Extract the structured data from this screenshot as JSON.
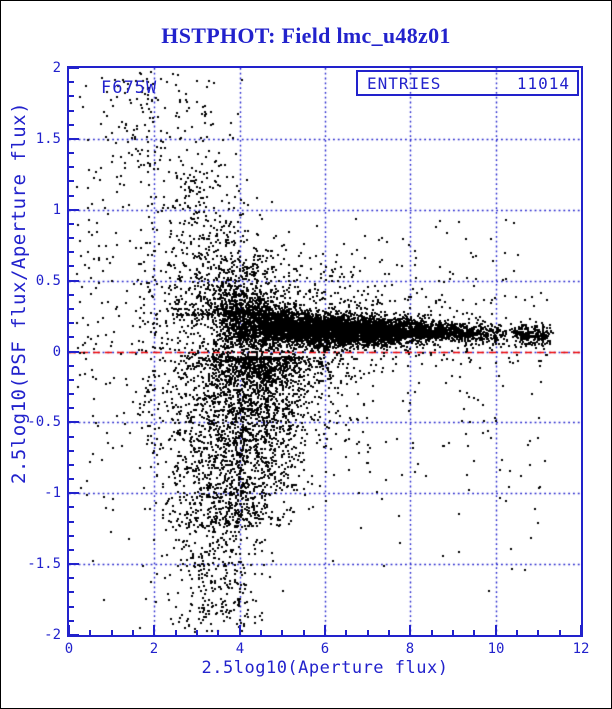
{
  "page": {
    "title": "HSTPHOT: Field lmc_u48z01"
  },
  "colors": {
    "accent": "#2222cc",
    "zero_line": "#ee0000",
    "points": "#000000",
    "background": "#ffffff",
    "outer_border": "#000000"
  },
  "chart_data": {
    "type": "scatter",
    "title": "HSTPHOT: Field lmc_u48z01",
    "xlabel": "2.5log10(Aperture flux)",
    "ylabel": "2.5log10(PSF flux/Aperture flux)",
    "xlim": [
      0,
      12
    ],
    "ylim": [
      -2,
      2
    ],
    "xticks": [
      {
        "v": 0,
        "label": "0"
      },
      {
        "v": 2,
        "label": "2"
      },
      {
        "v": 4,
        "label": "4"
      },
      {
        "v": 6,
        "label": "6"
      },
      {
        "v": 8,
        "label": "8"
      },
      {
        "v": 10,
        "label": "10"
      },
      {
        "v": 12,
        "label": "12"
      }
    ],
    "yticks": [
      {
        "v": 2,
        "label": "2"
      },
      {
        "v": 1.5,
        "label": "1.5"
      },
      {
        "v": 1,
        "label": "1"
      },
      {
        "v": 0.5,
        "label": "0.5"
      },
      {
        "v": 0,
        "label": "0"
      },
      {
        "v": -0.5,
        "label": "-0.5"
      },
      {
        "v": -1,
        "label": "-1"
      },
      {
        "v": -1.5,
        "label": "-1.5"
      },
      {
        "v": -2,
        "label": "-2"
      }
    ],
    "x_minor_step": 0.5,
    "y_minor_step": 0.1,
    "grid": {
      "x_values": [
        2,
        4,
        6,
        8,
        10
      ],
      "y_values": [
        -1.5,
        -1,
        -0.5,
        0,
        0.5,
        1,
        1.5
      ],
      "style": "dotted"
    },
    "zero_line": {
      "y": 0,
      "style": "dashed"
    },
    "annotations": {
      "filter_label": "F675W",
      "stats": {
        "label": "ENTRIES",
        "value": "11014"
      }
    },
    "n_points": 11014,
    "seed": 42,
    "band": {
      "center_x": [
        3.4,
        4,
        5,
        6,
        8,
        10,
        11.35
      ],
      "center_y": [
        0.225,
        0.195,
        0.17,
        0.15,
        0.14,
        0.122,
        0.112
      ],
      "sigma_x": [
        3.4,
        4,
        4.5,
        5,
        6,
        7,
        8,
        9,
        10,
        11.35
      ],
      "sigma_y": [
        0.15,
        0.115,
        0.085,
        0.065,
        0.052,
        0.047,
        0.042,
        0.038,
        0.038,
        0.042
      ],
      "halo_fraction": 0.08,
      "halo_scale": 3
    },
    "clusters": [
      {
        "name": "band-core",
        "n": 5800,
        "x": {
          "kind": "pw",
          "xs": [
            3.4,
            4.0,
            4.5,
            5.0,
            6.0,
            7.0,
            7.6,
            8.0,
            8.6,
            9.2,
            10.0,
            10.35,
            10.55,
            11.0,
            11.35
          ],
          "ws": [
            0.05,
            0.55,
            0.95,
            1.0,
            1.0,
            0.95,
            0.85,
            0.62,
            0.45,
            0.28,
            0.13,
            0.05,
            0.11,
            0.09,
            0.02
          ]
        },
        "y": {
          "kind": "band"
        }
      },
      {
        "name": "band-halo",
        "n": 880,
        "x": {
          "kind": "pw",
          "xs": [
            3.25,
            3.7,
            4.2,
            5.0,
            6.0,
            7.5
          ],
          "ws": [
            0.25,
            1.0,
            0.95,
            0.6,
            0.3,
            0.05
          ]
        },
        "y": {
          "kind": "bandnorm",
          "sd": 0.28
        }
      },
      {
        "name": "plume-down",
        "n": 2190,
        "x": {
          "kind": "norm",
          "mu": 4.55,
          "sd": 0.72,
          "min": 2.2,
          "max": 7.3
        },
        "y": {
          "kind": "pow",
          "a": 0.04,
          "b": 1.2,
          "p": 1.6,
          "sign": -1,
          "min": -1.98,
          "max": -0.02
        },
        "tilt": {
          "slope": 0.5,
          "ref": 0
        }
      },
      {
        "name": "plume-deep",
        "n": 300,
        "x": {
          "kind": "norm",
          "mu": 3.55,
          "sd": 0.55,
          "min": 2.2,
          "max": 5.2
        },
        "y": {
          "kind": "uni",
          "min": -1.98,
          "max": -1.2
        }
      },
      {
        "name": "upper-fan",
        "n": 500,
        "x": {
          "kind": "norm",
          "mu": 3.6,
          "sd": 0.62,
          "min": 1.85,
          "max": 6.6
        },
        "y": {
          "kind": "pow",
          "a": 0.26,
          "b": 1.7,
          "p": 2.6,
          "sign": 1,
          "min": 0.26,
          "max": 1.97
        },
        "tilt": {
          "slope": -0.58,
          "ref": 0.26
        }
      },
      {
        "name": "left-cloud",
        "n": 700,
        "x": {
          "kind": "norm",
          "mu": 2.95,
          "sd": 0.55,
          "min": 1.65,
          "max": 4.3
        },
        "y": {
          "kind": "norm",
          "mu": -0.15,
          "sd": 0.78,
          "min": -1.98,
          "max": 1.3
        }
      },
      {
        "name": "far-left-sparse",
        "n": 230,
        "x": {
          "kind": "uni",
          "min": 0.18,
          "max": 2.1
        },
        "y": {
          "kind": "norm",
          "mu": 0.35,
          "sd": 0.95,
          "min": -1.97,
          "max": 1.97
        }
      },
      {
        "name": "top-left-clump",
        "n": 60,
        "x": {
          "kind": "norm",
          "mu": 1.5,
          "sd": 0.45,
          "min": 0.75,
          "max": 2.7
        },
        "y": {
          "kind": "uni",
          "min": 1.28,
          "max": 1.97
        }
      },
      {
        "name": "right-scatter",
        "n": 200,
        "x": {
          "kind": "uni",
          "min": 5.8,
          "max": 11.2
        },
        "y": {
          "kind": "norm",
          "mu": -0.3,
          "sd": 0.6,
          "min": -1.72,
          "max": 0.7
        }
      },
      {
        "name": "above-band-sparse",
        "n": 60,
        "x": {
          "kind": "uni",
          "min": 5.5,
          "max": 10.5
        },
        "y": {
          "kind": "uni",
          "min": 0.25,
          "max": 0.95
        }
      },
      {
        "name": "right-end-clump",
        "n": 94,
        "x": {
          "kind": "uni",
          "min": 10.45,
          "max": 11.3
        },
        "y": {
          "kind": "norm",
          "mu": 0.115,
          "sd": 0.04,
          "min": -0.1,
          "max": 0.4
        }
      }
    ]
  }
}
